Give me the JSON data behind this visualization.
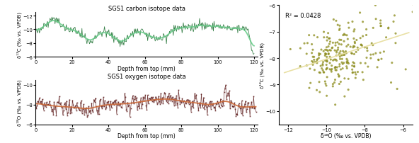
{
  "title_carbon": "SGS1 carbon isotope data",
  "title_oxygen": "SGS1 oxygen isotope data",
  "xlabel": "Depth from top (mm)",
  "ylabel_carbon": "δ¹³C (‰ vs. VPDB)",
  "ylabel_oxygen": "δ¹⁸O (‰ vs. VPDB)",
  "xlabel_scatter": "δ¹⁸O (‰ vs. VPDB)",
  "ylabel_scatter": "δ¹³C (‰ vs. VPDB)",
  "carbon_ylim": [
    -6.0,
    -12.5
  ],
  "oxygen_ylim": [
    -6.0,
    -10.5
  ],
  "carbon_yticks": [
    -12.0,
    -10.0,
    -8.0,
    -6.0
  ],
  "oxygen_yticks": [
    -10.0,
    -8.0,
    -6.0
  ],
  "xlim": [
    0,
    122
  ],
  "scatter_xlim": [
    -12.5,
    -5.5
  ],
  "scatter_ylim": [
    -10.5,
    -6.0
  ],
  "scatter_yticks": [
    -10.0,
    -9.0,
    -8.0,
    -7.0,
    -6.0
  ],
  "scatter_xticks": [
    -12.0,
    -10.0,
    -8.0,
    -6.0
  ],
  "r_squared": "R² = 0.0428",
  "carbon_color": "#1a6e2e",
  "carbon_smooth_color": "#66cc88",
  "oxygen_color": "#5c1a1a",
  "oxygen_smooth_color": "#cc6633",
  "scatter_color": "#8b8b1a",
  "trend_color": "#e8dfa0",
  "seed": 42
}
